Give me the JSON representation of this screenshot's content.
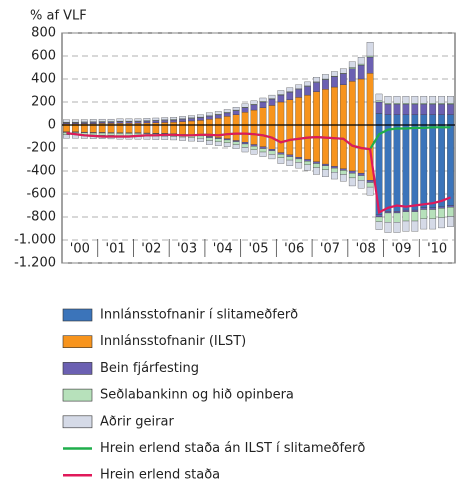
{
  "chart_data": {
    "type": "stacked-bar-line",
    "axis_label": "% af VLF",
    "categories": [
      "'00",
      null,
      null,
      null,
      "'01",
      null,
      null,
      null,
      "'02",
      null,
      null,
      null,
      "'03",
      null,
      null,
      null,
      "'04",
      null,
      null,
      null,
      "'05",
      null,
      null,
      null,
      "'06",
      null,
      null,
      null,
      "'07",
      null,
      null,
      null,
      "'08",
      null,
      null,
      null,
      "'09",
      null,
      null,
      null,
      "'10",
      null,
      null,
      null
    ],
    "ylim": [
      -1200,
      800
    ],
    "yticks": [
      {
        "value": -1200,
        "label": "-1.200"
      },
      {
        "value": -1000,
        "label": "-1.000"
      },
      -800,
      -600,
      -400,
      -200,
      0,
      200,
      400,
      600,
      800
    ],
    "grid": true,
    "series": [
      {
        "name": "Innlánsstofnanir í slitameðferð",
        "color": "#3b74ba",
        "assets": [
          0,
          0,
          0,
          0,
          0,
          0,
          0,
          0,
          0,
          0,
          0,
          0,
          0,
          0,
          0,
          0,
          0,
          0,
          0,
          0,
          0,
          0,
          0,
          0,
          0,
          0,
          0,
          0,
          0,
          0,
          0,
          0,
          0,
          0,
          0,
          100,
          90,
          90,
          90,
          90,
          90,
          90,
          90,
          90
        ],
        "liabilities": [
          0,
          0,
          0,
          0,
          0,
          0,
          0,
          0,
          0,
          0,
          0,
          0,
          0,
          0,
          0,
          0,
          0,
          0,
          0,
          0,
          0,
          0,
          0,
          0,
          0,
          0,
          0,
          0,
          0,
          0,
          0,
          0,
          0,
          0,
          0,
          -780,
          -750,
          -750,
          -740,
          -740,
          -720,
          -720,
          -710,
          -700
        ]
      },
      {
        "name": "Innlánsstofnanir (ILST)",
        "color": "#f7941d",
        "assets": [
          10,
          10,
          12,
          12,
          14,
          14,
          15,
          15,
          16,
          18,
          20,
          22,
          25,
          30,
          35,
          40,
          50,
          60,
          75,
          90,
          110,
          130,
          150,
          170,
          200,
          220,
          240,
          260,
          290,
          310,
          330,
          350,
          380,
          400,
          450,
          0,
          0,
          0,
          0,
          0,
          0,
          0,
          0,
          0
        ],
        "liabilities": [
          -60,
          -60,
          -62,
          -65,
          -65,
          -66,
          -68,
          -68,
          -68,
          -70,
          -72,
          -72,
          -75,
          -80,
          -85,
          -90,
          -100,
          -110,
          -120,
          -135,
          -150,
          -170,
          -190,
          -210,
          -240,
          -260,
          -280,
          -300,
          -320,
          -340,
          -360,
          -380,
          -400,
          -420,
          -480,
          0,
          0,
          0,
          0,
          0,
          0,
          0,
          0,
          0
        ]
      },
      {
        "name": "Bein fjárfesting",
        "color": "#6b60b2",
        "assets": [
          10,
          10,
          10,
          12,
          12,
          12,
          14,
          14,
          14,
          16,
          16,
          18,
          18,
          20,
          22,
          24,
          26,
          28,
          30,
          35,
          40,
          45,
          50,
          55,
          60,
          65,
          70,
          75,
          80,
          85,
          90,
          95,
          110,
          120,
          140,
          100,
          90,
          90,
          90,
          90,
          90,
          90,
          90,
          90
        ],
        "liabilities": [
          -5,
          -5,
          -5,
          -5,
          -5,
          -5,
          -5,
          -5,
          -5,
          -5,
          -5,
          -5,
          -5,
          -5,
          -5,
          -5,
          -10,
          -10,
          -10,
          -10,
          -15,
          -15,
          -15,
          -15,
          -15,
          -15,
          -15,
          -15,
          -15,
          -15,
          -15,
          -15,
          -20,
          -20,
          -20,
          -20,
          -15,
          -15,
          -15,
          -15,
          -15,
          -15,
          -15,
          -15
        ]
      },
      {
        "name": "Seðlabankinn og hið opinbera",
        "color": "#b7e1bb",
        "assets": [
          5,
          5,
          5,
          5,
          5,
          5,
          5,
          5,
          5,
          5,
          5,
          5,
          5,
          5,
          5,
          5,
          5,
          5,
          5,
          5,
          5,
          5,
          5,
          5,
          5,
          5,
          5,
          5,
          5,
          5,
          5,
          5,
          10,
          10,
          10,
          10,
          10,
          10,
          10,
          10,
          10,
          10,
          10,
          10
        ],
        "liabilities": [
          -20,
          -20,
          -20,
          -20,
          -20,
          -20,
          -20,
          -20,
          -20,
          -20,
          -20,
          -20,
          -20,
          -20,
          -20,
          -20,
          -25,
          -25,
          -25,
          -25,
          -30,
          -30,
          -30,
          -30,
          -30,
          -30,
          -30,
          -30,
          -35,
          -35,
          -35,
          -35,
          -40,
          -40,
          -40,
          -40,
          -80,
          -80,
          -80,
          -80,
          -80,
          -80,
          -80,
          -80
        ]
      },
      {
        "name": "Aðrir geirar",
        "color": "#d5dae7",
        "assets": [
          20,
          20,
          20,
          20,
          20,
          20,
          20,
          20,
          20,
          20,
          20,
          20,
          20,
          20,
          20,
          20,
          25,
          25,
          25,
          25,
          30,
          30,
          30,
          30,
          35,
          35,
          35,
          35,
          40,
          40,
          40,
          40,
          50,
          60,
          120,
          60,
          60,
          60,
          60,
          60,
          60,
          60,
          60,
          60
        ],
        "liabilities": [
          -30,
          -30,
          -30,
          -30,
          -30,
          -30,
          -30,
          -30,
          -30,
          -30,
          -30,
          -30,
          -30,
          -30,
          -30,
          -30,
          -35,
          -35,
          -35,
          -35,
          -40,
          -40,
          -40,
          -40,
          -50,
          -50,
          -50,
          -50,
          -60,
          -60,
          -60,
          -60,
          -70,
          -70,
          -70,
          -70,
          -90,
          -90,
          -90,
          -90,
          -90,
          -90,
          -90,
          -90
        ]
      }
    ],
    "lines": [
      {
        "name": "Hrein erlend staða án ILST í slitameðferð",
        "color": "#1fae4b",
        "values": [
          -70,
          -80,
          -90,
          -95,
          -100,
          -100,
          -100,
          -100,
          -95,
          -90,
          -90,
          -85,
          -85,
          -90,
          -90,
          -85,
          -85,
          -90,
          -80,
          -75,
          -75,
          -80,
          -90,
          -110,
          -150,
          -130,
          -120,
          -110,
          -105,
          -110,
          -115,
          -120,
          -180,
          -200,
          -210,
          -80,
          -40,
          -30,
          -30,
          -25,
          -25,
          -20,
          -20,
          -20
        ]
      },
      {
        "name": "Hrein erlend staða",
        "color": "#e0195a",
        "values": [
          -70,
          -80,
          -90,
          -95,
          -100,
          -100,
          -100,
          -100,
          -95,
          -90,
          -90,
          -85,
          -85,
          -90,
          -90,
          -85,
          -85,
          -90,
          -80,
          -75,
          -75,
          -80,
          -90,
          -110,
          -150,
          -130,
          -120,
          -110,
          -105,
          -110,
          -115,
          -120,
          -180,
          -200,
          -210,
          -760,
          -720,
          -700,
          -710,
          -700,
          -690,
          -680,
          -660,
          -630
        ]
      }
    ]
  }
}
